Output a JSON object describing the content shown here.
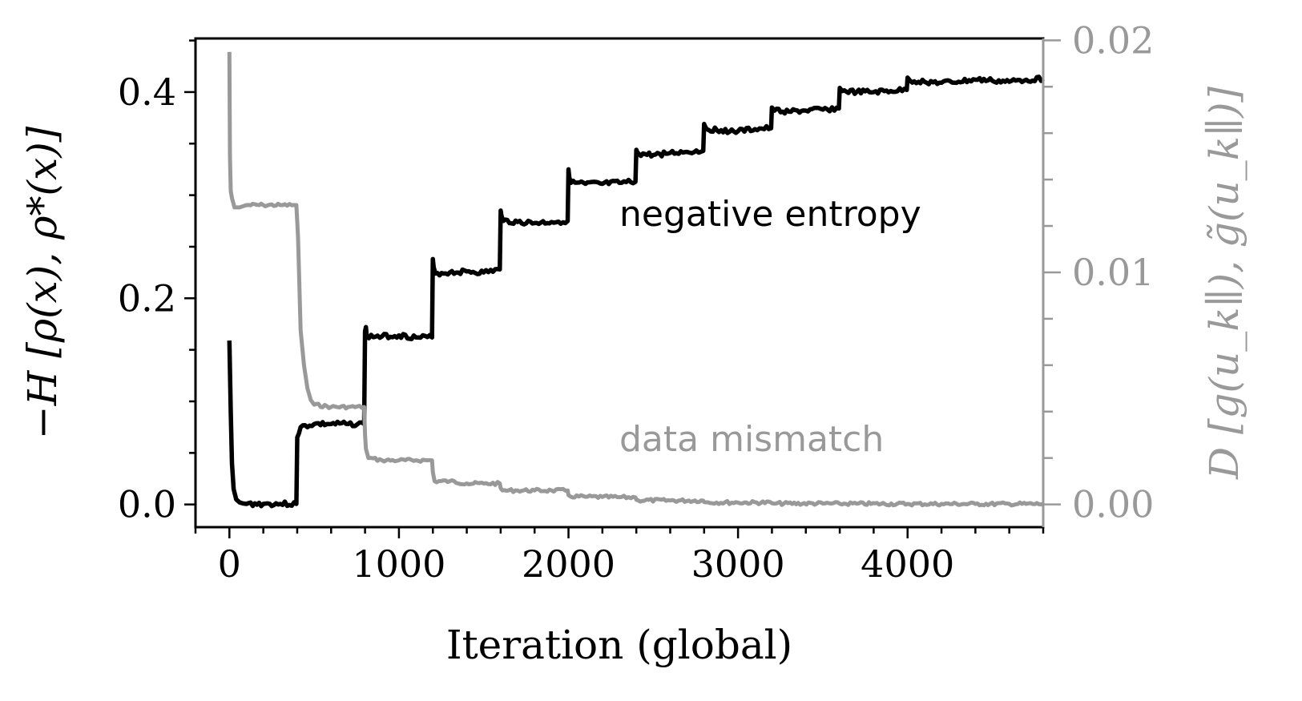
{
  "chart_data": {
    "type": "line",
    "xlabel": "Iteration (global)",
    "ylabel_left": "−H [ρ(x), ρ*(x)]",
    "ylabel_right": "D [g(u_k∥), g̃(u_k∥)]",
    "xlim": [
      -200,
      4800
    ],
    "ylim_left": [
      -0.022,
      0.452
    ],
    "ylim_right": [
      -0.00098,
      0.02008
    ],
    "x_ticks": [
      0,
      1000,
      2000,
      3000,
      4000
    ],
    "y_ticks_left": [
      0.0,
      0.2,
      0.4
    ],
    "y_ticks_right": [
      0.0,
      0.01,
      0.02
    ],
    "x_tick_labels": [
      "0",
      "1000",
      "2000",
      "3000",
      "4000"
    ],
    "y_tick_labels_left": [
      "0.0",
      "0.2",
      "0.4"
    ],
    "y_tick_labels_right": [
      "0.00",
      "0.01",
      "0.02"
    ],
    "grid": false,
    "annotations": [
      {
        "text": "negative entropy",
        "x": 2300,
        "y": 0.27,
        "axis": "left",
        "color": "#000000"
      },
      {
        "text": "data mismatch",
        "x": 2300,
        "y": 0.0023,
        "axis": "right",
        "color": "#999999"
      }
    ],
    "series": [
      {
        "id": "negative_entropy",
        "axis": "left",
        "color": "#000000",
        "x": [
          0,
          8,
          15,
          25,
          40,
          60,
          80,
          100,
          200,
          300,
          395,
          400,
          410,
          420,
          500,
          600,
          700,
          795,
          800,
          805,
          810,
          900,
          1000,
          1100,
          1195,
          1200,
          1205,
          1215,
          1300,
          1400,
          1500,
          1595,
          1600,
          1605,
          1615,
          1700,
          1800,
          1900,
          1995,
          2000,
          2005,
          2015,
          2100,
          2200,
          2300,
          2395,
          2400,
          2405,
          2415,
          2500,
          2600,
          2700,
          2795,
          2800,
          2805,
          2815,
          2900,
          3000,
          3100,
          3195,
          3200,
          3205,
          3215,
          3300,
          3400,
          3500,
          3595,
          3600,
          3605,
          3615,
          3700,
          3800,
          3900,
          3995,
          4000,
          4005,
          4015,
          4100,
          4200,
          4300,
          4400,
          4500,
          4600,
          4700,
          4800
        ],
        "y": [
          0.159,
          0.09,
          0.04,
          0.015,
          0.005,
          0.002,
          0.001,
          0.0005,
          0.0005,
          0.0005,
          0.0005,
          0.065,
          0.069,
          0.075,
          0.078,
          0.078,
          0.078,
          0.078,
          0.168,
          0.172,
          0.163,
          0.163,
          0.164,
          0.162,
          0.162,
          0.238,
          0.23,
          0.224,
          0.225,
          0.226,
          0.225,
          0.228,
          0.285,
          0.28,
          0.275,
          0.274,
          0.273,
          0.274,
          0.275,
          0.325,
          0.317,
          0.312,
          0.311,
          0.311,
          0.312,
          0.313,
          0.344,
          0.342,
          0.34,
          0.339,
          0.341,
          0.342,
          0.343,
          0.369,
          0.367,
          0.364,
          0.363,
          0.362,
          0.364,
          0.365,
          0.385,
          0.384,
          0.382,
          0.381,
          0.382,
          0.383,
          0.384,
          0.404,
          0.403,
          0.401,
          0.4,
          0.4,
          0.401,
          0.402,
          0.414,
          0.413,
          0.411,
          0.41,
          0.409,
          0.41,
          0.412,
          0.411,
          0.41,
          0.412,
          0.413
        ]
      },
      {
        "id": "data_mismatch",
        "axis": "right",
        "color": "#999999",
        "x": [
          0,
          3,
          8,
          15,
          30,
          60,
          100,
          200,
          300,
          395,
          405,
          420,
          440,
          460,
          480,
          500,
          600,
          700,
          795,
          800,
          805,
          820,
          900,
          1000,
          1100,
          1195,
          1200,
          1210,
          1300,
          1400,
          1500,
          1595,
          1600,
          1610,
          1700,
          1800,
          1900,
          1995,
          2000,
          2010,
          2100,
          2200,
          2300,
          2395,
          2400,
          2410,
          2600,
          2795,
          2800,
          2810,
          3000,
          3195,
          3200,
          3210,
          3500,
          3600,
          3700,
          4000,
          4200,
          4400,
          4600,
          4800
        ],
        "y": [
          0.0195,
          0.015,
          0.0135,
          0.0132,
          0.0128,
          0.0128,
          0.0129,
          0.0129,
          0.0129,
          0.0129,
          0.0115,
          0.0075,
          0.006,
          0.005,
          0.0045,
          0.0043,
          0.0042,
          0.0042,
          0.0042,
          0.003,
          0.0024,
          0.002,
          0.0019,
          0.0019,
          0.0019,
          0.0019,
          0.0014,
          0.001,
          0.001,
          0.0009,
          0.0009,
          0.0009,
          0.0007,
          0.0006,
          0.0006,
          0.0006,
          0.0006,
          0.0006,
          0.0004,
          0.00035,
          0.00033,
          0.00032,
          0.00031,
          0.0003,
          0.0002,
          0.00018,
          0.00017,
          0.00016,
          0.0001,
          9e-05,
          8e-05,
          8e-05,
          5e-05,
          4e-05,
          4e-05,
          3e-05,
          3e-05,
          2e-05,
          2e-05,
          2e-05,
          2e-05,
          2e-05
        ]
      }
    ]
  }
}
